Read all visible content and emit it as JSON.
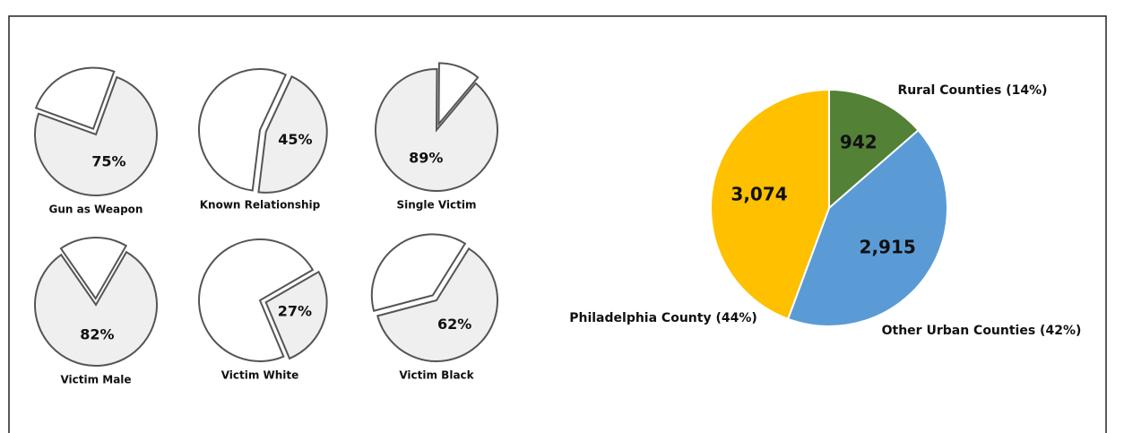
{
  "chart_data": [
    {
      "type": "pie",
      "title": "Gun as Weapon",
      "values": [
        75,
        25
      ],
      "value_labels": [
        "75%",
        null
      ],
      "colors": [
        "#efefef",
        "#ffffff"
      ]
    },
    {
      "type": "pie",
      "title": "Known Relationship",
      "values": [
        45,
        55
      ],
      "value_labels": [
        "45%",
        null
      ],
      "colors": [
        "#efefef",
        "#ffffff"
      ]
    },
    {
      "type": "pie",
      "title": "Single Victim",
      "values": [
        89,
        11
      ],
      "value_labels": [
        "89%",
        null
      ],
      "colors": [
        "#efefef",
        "#ffffff"
      ]
    },
    {
      "type": "pie",
      "title": "Victim Male",
      "values": [
        82,
        18
      ],
      "value_labels": [
        "82%",
        null
      ],
      "colors": [
        "#efefef",
        "#ffffff"
      ]
    },
    {
      "type": "pie",
      "title": "Victim White",
      "values": [
        27,
        73
      ],
      "value_labels": [
        "27%",
        null
      ],
      "colors": [
        "#efefef",
        "#ffffff"
      ]
    },
    {
      "type": "pie",
      "title": "Victim Black",
      "values": [
        62,
        38
      ],
      "value_labels": [
        "62%",
        null
      ],
      "colors": [
        "#efefef",
        "#ffffff"
      ]
    },
    {
      "type": "pie",
      "categories": [
        "Rural Counties (14%)",
        "Other Urban Counties (42%)",
        "Philadelphia County (44%)"
      ],
      "values": [
        942,
        2915,
        3074
      ],
      "value_labels": [
        "942",
        "2,915",
        "3,074"
      ],
      "colors": [
        "#538135",
        "#5b9bd5",
        "#ffc000"
      ]
    }
  ]
}
